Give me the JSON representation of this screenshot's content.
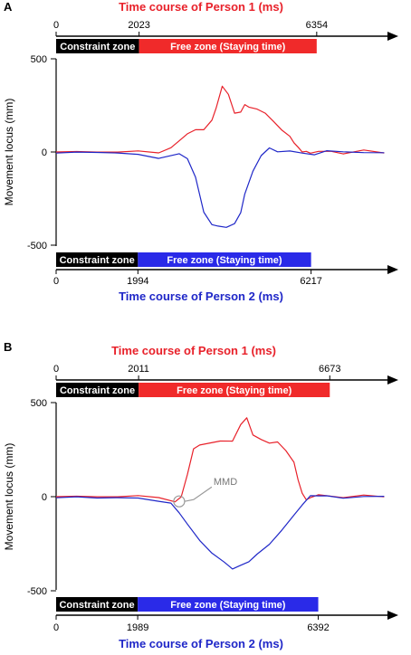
{
  "chart_data": [
    {
      "panel": "A",
      "type": "line",
      "ylabel": "Movement locus (mm)",
      "ylim": [
        -500,
        500
      ],
      "yticks": [
        "500",
        "0",
        "-500"
      ],
      "top_axis": {
        "title": "Time course of Person 1 (ms)",
        "title_color": "#e8212a",
        "ticks": [
          "0",
          "2023",
          "6354"
        ],
        "tick_values": [
          0,
          2023,
          6354
        ]
      },
      "top_zones": {
        "constraint_label": "Constraint zone",
        "free_label": "Free zone  (Staying time)",
        "free_end": 6354,
        "free_color": "#f02a2a"
      },
      "bottom_axis": {
        "title": "Time course of Person 2 (ms)",
        "title_color": "#1f27c8",
        "ticks": [
          "0",
          "1994",
          "6217"
        ],
        "tick_values": [
          0,
          1994,
          6217
        ]
      },
      "bottom_zones": {
        "constraint_label": "Constraint zone",
        "free_label": "Free zone (Staying time)",
        "free_end": 6217,
        "free_color": "#2a2ae8"
      },
      "series": [
        {
          "color": "#e8212a",
          "x": [
            0,
            500,
            1000,
            1500,
            2000,
            2500,
            2800,
            3000,
            3200,
            3400,
            3600,
            3800,
            3900,
            4050,
            4200,
            4350,
            4500,
            4600,
            4700,
            4900,
            5100,
            5300,
            5500,
            5700,
            5800,
            5900,
            6000,
            6100,
            6200,
            6400,
            6700,
            7000,
            7500,
            8000
          ],
          "y": [
            0,
            5,
            -5,
            5,
            0,
            0,
            20,
            60,
            100,
            115,
            125,
            165,
            240,
            350,
            310,
            210,
            210,
            260,
            235,
            235,
            205,
            165,
            120,
            80,
            55,
            20,
            5,
            0,
            -5,
            5,
            0,
            -5,
            5,
            0
          ]
        },
        {
          "color": "#1f27c8",
          "x": [
            0,
            500,
            1000,
            1500,
            2000,
            2500,
            3000,
            3200,
            3400,
            3600,
            3800,
            3950,
            4150,
            4350,
            4500,
            4600,
            4800,
            5000,
            5200,
            5400,
            5700,
            6000,
            6300,
            6600,
            7000,
            7500,
            8000
          ],
          "y": [
            0,
            -5,
            0,
            -5,
            -15,
            -30,
            -15,
            -30,
            -140,
            -320,
            -390,
            -400,
            -400,
            -390,
            -320,
            -230,
            -100,
            -20,
            20,
            5,
            0,
            0,
            -20,
            10,
            0,
            -5,
            0
          ]
        }
      ]
    },
    {
      "panel": "B",
      "type": "line",
      "ylabel": "Movement locus (mm)",
      "ylim": [
        -500,
        500
      ],
      "yticks": [
        "500",
        "0",
        "-500"
      ],
      "annotation": "MMD",
      "top_axis": {
        "title": "Time course of Person 1 (ms)",
        "title_color": "#e8212a",
        "ticks": [
          "0",
          "2011",
          "6673"
        ],
        "tick_values": [
          0,
          2011,
          6673
        ]
      },
      "top_zones": {
        "constraint_label": "Constraint zone",
        "free_label": "Free zone  (Staying time)",
        "free_end": 6673,
        "free_color": "#f02a2a"
      },
      "bottom_axis": {
        "title": "Time course of Person 2 (ms)",
        "title_color": "#1f27c8",
        "ticks": [
          "0",
          "1989",
          "6392"
        ],
        "tick_values": [
          0,
          1989,
          6392
        ]
      },
      "bottom_zones": {
        "constraint_label": "Constraint zone",
        "free_label": "Free zone (Staying time)",
        "free_end": 6392,
        "free_color": "#2a2ae8"
      },
      "series": [
        {
          "color": "#e8212a",
          "x": [
            0,
            500,
            1000,
            1500,
            2000,
            2500,
            2900,
            3050,
            3200,
            3350,
            3500,
            4000,
            4300,
            4500,
            4650,
            4800,
            5000,
            5200,
            5400,
            5600,
            5800,
            5900,
            6000,
            6100,
            6200,
            6400,
            7000,
            7500,
            8000
          ],
          "y": [
            0,
            5,
            -5,
            5,
            0,
            0,
            -30,
            0,
            120,
            250,
            280,
            290,
            300,
            380,
            420,
            330,
            300,
            290,
            285,
            250,
            180,
            90,
            20,
            -20,
            0,
            5,
            0,
            5,
            0
          ]
        },
        {
          "color": "#1f27c8",
          "x": [
            0,
            500,
            1000,
            1500,
            2000,
            2500,
            2800,
            3000,
            3200,
            3500,
            3800,
            4100,
            4300,
            4500,
            4700,
            4900,
            5200,
            5500,
            5800,
            6000,
            6200,
            6400,
            6600,
            7000,
            7500,
            8000
          ],
          "y": [
            0,
            -5,
            -5,
            -5,
            -10,
            -20,
            -40,
            -80,
            -150,
            -230,
            -300,
            -350,
            -380,
            -370,
            -340,
            -310,
            -250,
            -180,
            -100,
            -40,
            0,
            10,
            0,
            -5,
            0,
            0
          ]
        }
      ]
    }
  ],
  "panels": [
    {
      "label": "A"
    },
    {
      "label": "B"
    }
  ]
}
